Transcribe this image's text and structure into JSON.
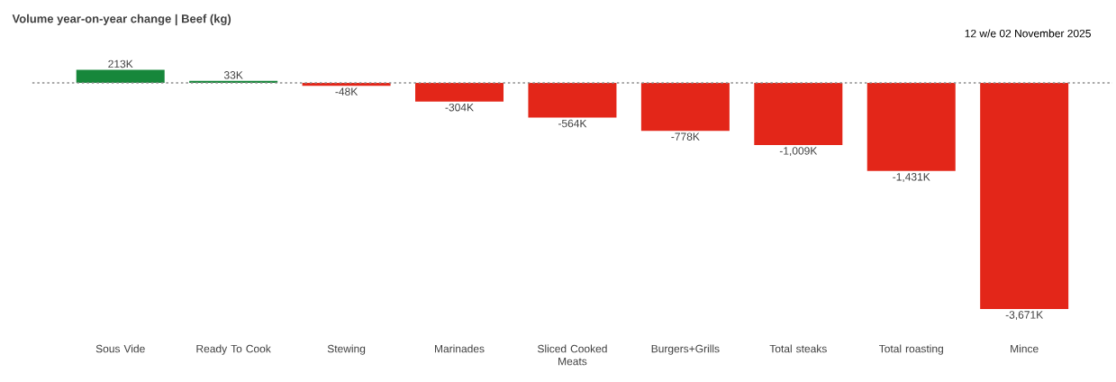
{
  "chart_data": {
    "type": "bar",
    "title": "Volume year-on-year change | Beef (kg)",
    "annotations": [
      "12 w/e 02 November 2025"
    ],
    "categories": [
      "Sous Vide",
      "Ready To Cook",
      "Stewing",
      "Marinades",
      "Sliced Cooked Meats",
      "Burgers+Grills",
      "Total steaks",
      "Total roasting",
      "Mince"
    ],
    "values": [
      213,
      33,
      -48,
      -304,
      -564,
      -778,
      -1009,
      -1431,
      -3671
    ],
    "value_labels": [
      "213K",
      "33K",
      "-48K",
      "-304K",
      "-564K",
      "-778K",
      "-1,009K",
      "-1,431K",
      "-3,671K"
    ],
    "colors": [
      "#17873b",
      "#17873b",
      "#e32619",
      "#e32619",
      "#e32619",
      "#e32619",
      "#e32619",
      "#e32619",
      "#e32619"
    ],
    "ref_lines": [
      {
        "axis": "y",
        "value": 0,
        "line_style": "dotted",
        "color": "#8c8c8c"
      }
    ]
  }
}
